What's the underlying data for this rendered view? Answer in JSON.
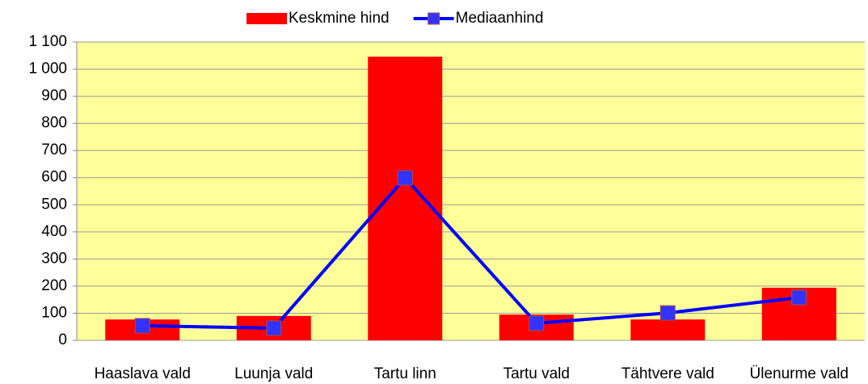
{
  "chart_data": {
    "type": "bar",
    "categories": [
      "Haaslava vald",
      "Luunja vald",
      "Tartu linn",
      "Tartu vald",
      "Tähtvere vald",
      "Ülenurme vald"
    ],
    "series": [
      {
        "name": "Keskmine hind",
        "type": "bar",
        "color": "#ff0000",
        "values": [
          77,
          90,
          1046,
          95,
          77,
          194
        ]
      },
      {
        "name": "Mediaanhind",
        "type": "line",
        "color": "#0000ff",
        "marker_color": "#3333ff",
        "values": [
          54,
          45,
          599,
          63,
          101,
          158
        ]
      }
    ],
    "ylim": [
      0,
      1100
    ],
    "yticks": [
      0,
      100,
      200,
      300,
      400,
      500,
      600,
      700,
      800,
      900,
      {
        "value": 1000,
        "label": "1 000"
      },
      {
        "value": 1100,
        "label": "1 100"
      }
    ],
    "grid": true,
    "plot_background": "#ffff99",
    "legend": "top"
  }
}
